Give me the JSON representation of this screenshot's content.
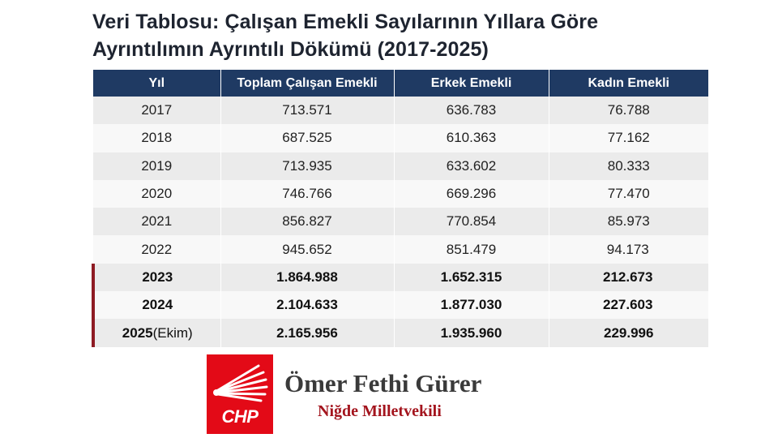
{
  "title": {
    "line1": "Veri Tablosu: Çalışan Emekli Sayılarının Yıllara Göre",
    "line2": "Ayrıntılımın Ayrıntılı Dökümü (2017-2025)"
  },
  "table": {
    "headers": [
      "Yıl",
      "Toplam Çalışan Emekli",
      "Erkek Emekli",
      "Kadın Emekli"
    ],
    "rows": [
      {
        "year": "2017",
        "year_suffix": "",
        "total": "713.571",
        "male": "636.783",
        "female": "76.788",
        "bold": false
      },
      {
        "year": "2018",
        "year_suffix": "",
        "total": "687.525",
        "male": "610.363",
        "female": "77.162",
        "bold": false
      },
      {
        "year": "2019",
        "year_suffix": "",
        "total": "713.935",
        "male": "633.602",
        "female": "80.333",
        "bold": false
      },
      {
        "year": "2020",
        "year_suffix": "",
        "total": "746.766",
        "male": "669.296",
        "female": "77.470",
        "bold": false
      },
      {
        "year": "2021",
        "year_suffix": "",
        "total": "856.827",
        "male": "770.854",
        "female": "85.973",
        "bold": false
      },
      {
        "year": "2022",
        "year_suffix": "",
        "total": "945.652",
        "male": "851.479",
        "female": "94.173",
        "bold": false
      },
      {
        "year": "2023",
        "year_suffix": "",
        "total": "1.864.988",
        "male": "1.652.315",
        "female": "212.673",
        "bold": true
      },
      {
        "year": "2024",
        "year_suffix": "",
        "total": "2.104.633",
        "male": "1.877.030",
        "female": "227.603",
        "bold": true
      },
      {
        "year": "2025",
        "year_suffix": "(Ekim)",
        "total": "2.165.956",
        "male": "1.935.960",
        "female": "229.996",
        "bold": true
      }
    ]
  },
  "footer": {
    "logo_text": "CHP",
    "name": "Ömer Fethi Gürer",
    "role": "Niğde Milletvekili"
  },
  "colors": {
    "header_bg": "#1f3a63",
    "highlight_bar": "#8e1b23",
    "logo_red": "#e30a17",
    "role_text": "#a3141d"
  }
}
